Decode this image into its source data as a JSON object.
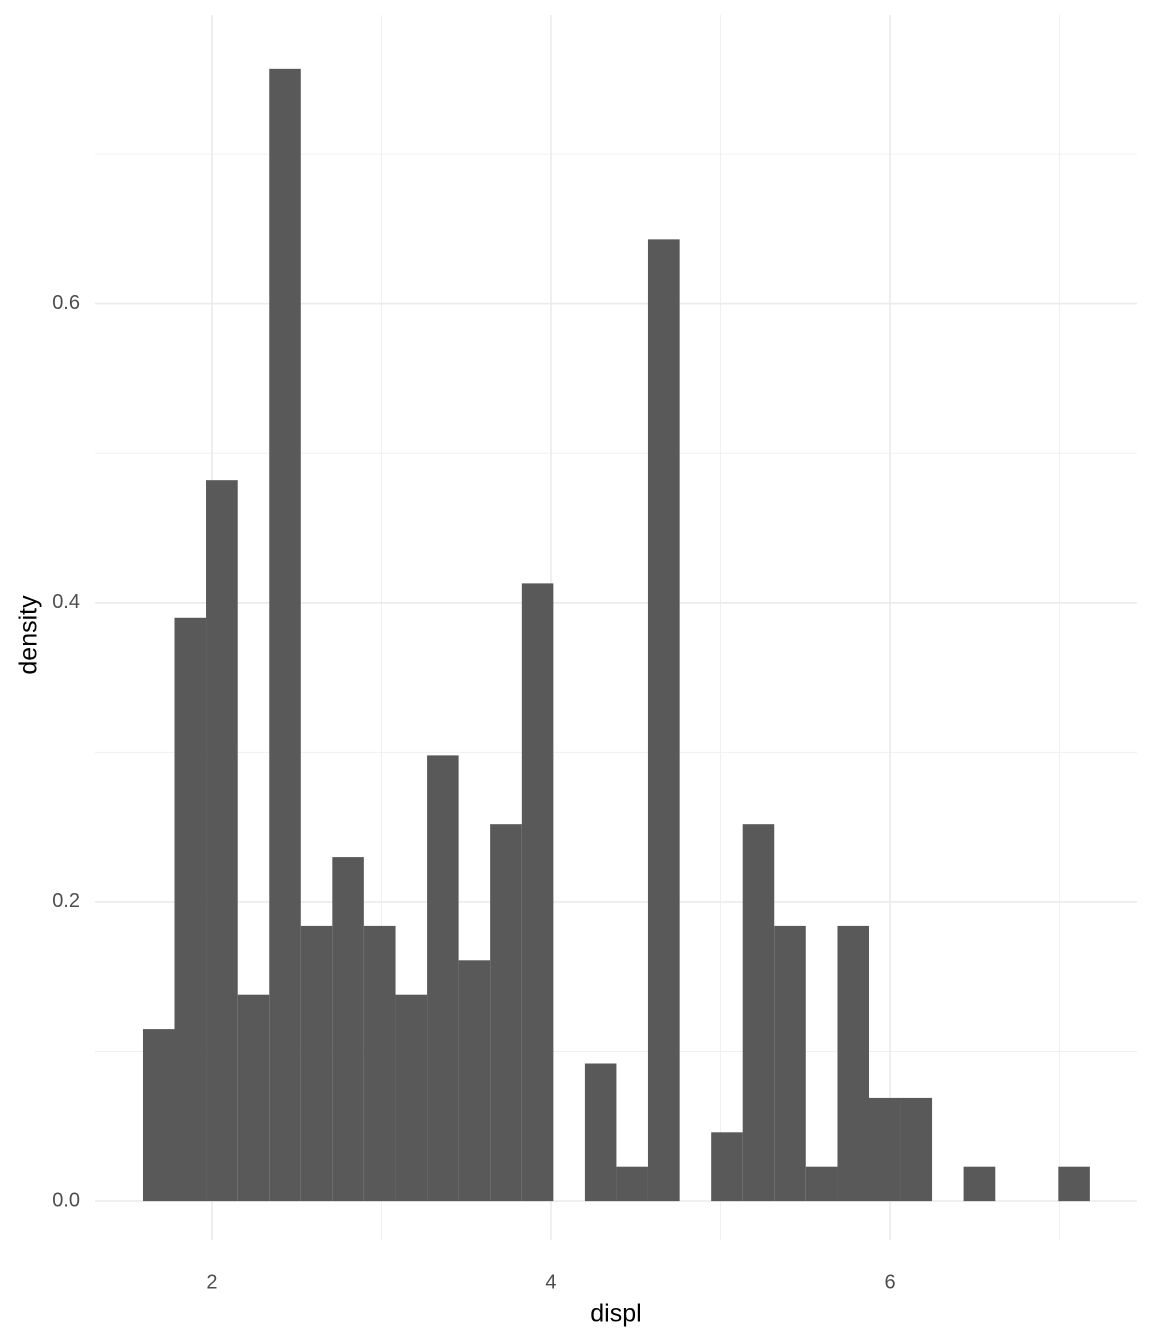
{
  "chart_data": {
    "type": "histogram",
    "x_label": "displ",
    "y_label": "density",
    "bins": [
      1.593,
      1.779,
      1.965,
      2.152,
      2.338,
      2.524,
      2.71,
      2.896,
      3.083,
      3.269,
      3.455,
      3.641,
      3.828,
      4.014,
      4.2,
      4.386,
      4.572,
      4.759,
      4.945,
      5.131,
      5.317,
      5.503,
      5.69,
      5.876,
      6.062,
      6.248,
      6.434,
      6.621,
      6.807,
      6.993,
      7.179
    ],
    "values": [
      0.115,
      0.39,
      0.482,
      0.138,
      0.757,
      0.184,
      0.23,
      0.184,
      0.138,
      0.298,
      0.161,
      0.252,
      0.413,
      0,
      0.092,
      0.023,
      0.643,
      0,
      0.046,
      0.252,
      0.184,
      0.023,
      0.184,
      0.069,
      0.069,
      0,
      0.023,
      0,
      0,
      0.023
    ],
    "color": "#595959",
    "xlim": [
      1.31,
      7.457
    ],
    "ylim": [
      -0.026,
      0.793
    ],
    "xticks": [
      2,
      4,
      6
    ],
    "yticks": [
      {
        "value": 0,
        "label": "0.0"
      },
      {
        "value": 0.2,
        "label": "0.2"
      },
      {
        "value": 0.4,
        "label": "0.4"
      },
      {
        "value": 0.6,
        "label": "0.6"
      }
    ],
    "x_minor_grid": [
      3,
      5,
      7
    ],
    "y_minor_grid": [
      0.1,
      0.3,
      0.5,
      0.7
    ],
    "grid": true
  }
}
